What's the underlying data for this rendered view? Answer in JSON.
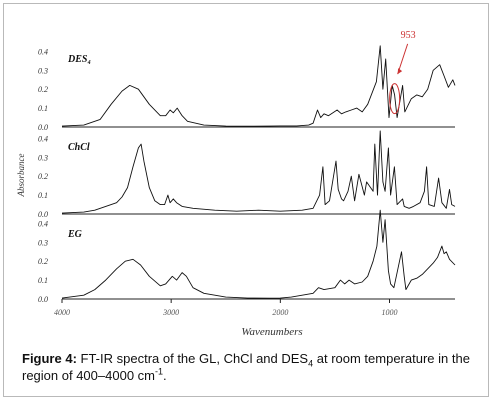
{
  "caption": {
    "label": "Figure 4:",
    "text_part1": " FT-IR spectra of the GL, ChCl and DES",
    "text_sub": "4",
    "text_part2": " at room temperature in the region of 400–4000 cm",
    "text_sup": "-1",
    "text_end": "."
  },
  "chart_data": {
    "type": "line",
    "xlabel": "Wavenumbers",
    "ylabel": "Absorbance",
    "x_ticks": [
      "4000",
      "3000",
      "2000",
      "1000"
    ],
    "xlim": [
      4000,
      400
    ],
    "panels": [
      {
        "name": "DES₄",
        "yticks": [
          "0.4",
          "0.3",
          "0.2",
          "0.1",
          "0.0"
        ],
        "ylim": [
          0,
          0.45
        ],
        "annotation": {
          "text": "953",
          "x": 953,
          "color": "#cc3333"
        },
        "points": [
          [
            4000,
            0.005
          ],
          [
            3800,
            0.01
          ],
          [
            3650,
            0.04
          ],
          [
            3550,
            0.12
          ],
          [
            3450,
            0.19
          ],
          [
            3380,
            0.22
          ],
          [
            3300,
            0.2
          ],
          [
            3200,
            0.12
          ],
          [
            3100,
            0.06
          ],
          [
            3050,
            0.06
          ],
          [
            3010,
            0.09
          ],
          [
            2980,
            0.075
          ],
          [
            2945,
            0.1
          ],
          [
            2900,
            0.06
          ],
          [
            2850,
            0.03
          ],
          [
            2700,
            0.01
          ],
          [
            2500,
            0.005
          ],
          [
            2300,
            0.004
          ],
          [
            2100,
            0.005
          ],
          [
            2000,
            0.006
          ],
          [
            1850,
            0.006
          ],
          [
            1740,
            0.01
          ],
          [
            1700,
            0.02
          ],
          [
            1660,
            0.09
          ],
          [
            1630,
            0.05
          ],
          [
            1600,
            0.07
          ],
          [
            1560,
            0.06
          ],
          [
            1480,
            0.09
          ],
          [
            1440,
            0.07
          ],
          [
            1400,
            0.08
          ],
          [
            1350,
            0.09
          ],
          [
            1300,
            0.1
          ],
          [
            1250,
            0.08
          ],
          [
            1200,
            0.12
          ],
          [
            1120,
            0.24
          ],
          [
            1085,
            0.43
          ],
          [
            1060,
            0.2
          ],
          [
            1035,
            0.36
          ],
          [
            1005,
            0.05
          ],
          [
            975,
            0.22
          ],
          [
            953,
            0.17
          ],
          [
            930,
            0.05
          ],
          [
            880,
            0.22
          ],
          [
            860,
            0.08
          ],
          [
            800,
            0.15
          ],
          [
            750,
            0.17
          ],
          [
            700,
            0.16
          ],
          [
            650,
            0.2
          ],
          [
            600,
            0.3
          ],
          [
            540,
            0.33
          ],
          [
            500,
            0.27
          ],
          [
            460,
            0.21
          ],
          [
            420,
            0.25
          ],
          [
            400,
            0.22
          ]
        ]
      },
      {
        "name": "ChCl",
        "yticks": [
          "0.4",
          "0.3",
          "0.2",
          "0.1",
          "0.0"
        ],
        "ylim": [
          0,
          0.45
        ],
        "points": [
          [
            4000,
            0.005
          ],
          [
            3800,
            0.01
          ],
          [
            3700,
            0.02
          ],
          [
            3600,
            0.04
          ],
          [
            3500,
            0.06
          ],
          [
            3450,
            0.09
          ],
          [
            3400,
            0.14
          ],
          [
            3350,
            0.25
          ],
          [
            3300,
            0.35
          ],
          [
            3275,
            0.37
          ],
          [
            3250,
            0.28
          ],
          [
            3200,
            0.14
          ],
          [
            3150,
            0.07
          ],
          [
            3100,
            0.05
          ],
          [
            3060,
            0.05
          ],
          [
            3030,
            0.1
          ],
          [
            3010,
            0.06
          ],
          [
            2980,
            0.08
          ],
          [
            2950,
            0.06
          ],
          [
            2900,
            0.04
          ],
          [
            2800,
            0.03
          ],
          [
            2600,
            0.02
          ],
          [
            2400,
            0.015
          ],
          [
            2200,
            0.02
          ],
          [
            2000,
            0.015
          ],
          [
            1800,
            0.02
          ],
          [
            1700,
            0.03
          ],
          [
            1640,
            0.1
          ],
          [
            1610,
            0.25
          ],
          [
            1590,
            0.05
          ],
          [
            1550,
            0.07
          ],
          [
            1490,
            0.28
          ],
          [
            1470,
            0.13
          ],
          [
            1440,
            0.08
          ],
          [
            1420,
            0.07
          ],
          [
            1380,
            0.12
          ],
          [
            1350,
            0.2
          ],
          [
            1320,
            0.07
          ],
          [
            1280,
            0.21
          ],
          [
            1230,
            0.1
          ],
          [
            1210,
            0.17
          ],
          [
            1150,
            0.12
          ],
          [
            1135,
            0.37
          ],
          [
            1110,
            0.1
          ],
          [
            1085,
            0.44
          ],
          [
            1060,
            0.17
          ],
          [
            1040,
            0.12
          ],
          [
            1010,
            0.35
          ],
          [
            990,
            0.1
          ],
          [
            955,
            0.25
          ],
          [
            930,
            0.05
          ],
          [
            880,
            0.08
          ],
          [
            865,
            0.04
          ],
          [
            820,
            0.03
          ],
          [
            780,
            0.04
          ],
          [
            720,
            0.06
          ],
          [
            680,
            0.12
          ],
          [
            660,
            0.25
          ],
          [
            640,
            0.05
          ],
          [
            590,
            0.04
          ],
          [
            550,
            0.19
          ],
          [
            520,
            0.06
          ],
          [
            480,
            0.03
          ],
          [
            450,
            0.13
          ],
          [
            430,
            0.05
          ],
          [
            400,
            0.04
          ]
        ]
      },
      {
        "name": "EG",
        "yticks": [
          "0.4",
          "0.3",
          "0.2",
          "0.1",
          "0.0"
        ],
        "ylim": [
          0,
          0.45
        ],
        "points": [
          [
            4000,
            0.005
          ],
          [
            3800,
            0.02
          ],
          [
            3700,
            0.05
          ],
          [
            3600,
            0.1
          ],
          [
            3500,
            0.16
          ],
          [
            3420,
            0.2
          ],
          [
            3350,
            0.21
          ],
          [
            3280,
            0.18
          ],
          [
            3200,
            0.12
          ],
          [
            3100,
            0.07
          ],
          [
            3050,
            0.08
          ],
          [
            2990,
            0.12
          ],
          [
            2950,
            0.1
          ],
          [
            2900,
            0.14
          ],
          [
            2860,
            0.12
          ],
          [
            2800,
            0.06
          ],
          [
            2700,
            0.03
          ],
          [
            2500,
            0.01
          ],
          [
            2300,
            0.005
          ],
          [
            2100,
            0.004
          ],
          [
            2000,
            0.005
          ],
          [
            1900,
            0.01
          ],
          [
            1800,
            0.02
          ],
          [
            1700,
            0.03
          ],
          [
            1650,
            0.06
          ],
          [
            1600,
            0.05
          ],
          [
            1500,
            0.06
          ],
          [
            1450,
            0.1
          ],
          [
            1410,
            0.08
          ],
          [
            1370,
            0.1
          ],
          [
            1320,
            0.08
          ],
          [
            1250,
            0.09
          ],
          [
            1200,
            0.12
          ],
          [
            1150,
            0.2
          ],
          [
            1115,
            0.28
          ],
          [
            1085,
            0.47
          ],
          [
            1060,
            0.3
          ],
          [
            1040,
            0.42
          ],
          [
            1010,
            0.15
          ],
          [
            990,
            0.08
          ],
          [
            960,
            0.06
          ],
          [
            890,
            0.25
          ],
          [
            865,
            0.12
          ],
          [
            850,
            0.05
          ],
          [
            800,
            0.1
          ],
          [
            750,
            0.11
          ],
          [
            700,
            0.13
          ],
          [
            650,
            0.16
          ],
          [
            600,
            0.19
          ],
          [
            560,
            0.22
          ],
          [
            520,
            0.28
          ],
          [
            500,
            0.24
          ],
          [
            480,
            0.25
          ],
          [
            450,
            0.21
          ],
          [
            400,
            0.18
          ]
        ]
      }
    ]
  }
}
